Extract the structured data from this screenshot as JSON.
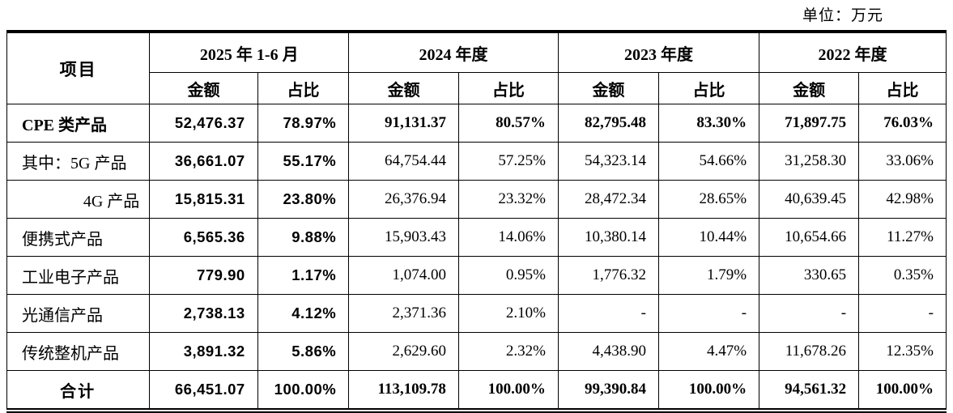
{
  "unit_label": "单位：万元",
  "table": {
    "item_header": "项目",
    "col_groups": [
      {
        "label": "2025 年 1-6 月",
        "sub": [
          "金额",
          "占比"
        ]
      },
      {
        "label": "2024 年度",
        "sub": [
          "金额",
          "占比"
        ]
      },
      {
        "label": "2023 年度",
        "sub": [
          "金额",
          "占比"
        ]
      },
      {
        "label": "2022 年度",
        "sub": [
          "金额",
          "占比"
        ]
      }
    ],
    "rows": [
      {
        "label": "CPE 类产品",
        "label_align": "left",
        "bold": true,
        "values": [
          "52,476.37",
          "78.97%",
          "91,131.37",
          "80.57%",
          "82,795.48",
          "83.30%",
          "71,897.75",
          "76.03%"
        ]
      },
      {
        "label": "其中：5G 产品",
        "label_align": "left",
        "bold": false,
        "values": [
          "36,661.07",
          "55.17%",
          "64,754.44",
          "57.25%",
          "54,323.14",
          "54.66%",
          "31,258.30",
          "33.06%"
        ]
      },
      {
        "label": "4G 产品",
        "label_align": "right",
        "bold": false,
        "values": [
          "15,815.31",
          "23.80%",
          "26,376.94",
          "23.32%",
          "28,472.34",
          "28.65%",
          "40,639.45",
          "42.98%"
        ]
      },
      {
        "label": "便携式产品",
        "label_align": "left",
        "bold": false,
        "values": [
          "6,565.36",
          "9.88%",
          "15,903.43",
          "14.06%",
          "10,380.14",
          "10.44%",
          "10,654.66",
          "11.27%"
        ]
      },
      {
        "label": "工业电子产品",
        "label_align": "left",
        "bold": false,
        "values": [
          "779.90",
          "1.17%",
          "1,074.00",
          "0.95%",
          "1,776.32",
          "1.79%",
          "330.65",
          "0.35%"
        ]
      },
      {
        "label": "光通信产品",
        "label_align": "left",
        "bold": false,
        "values": [
          "2,738.13",
          "4.12%",
          "2,371.36",
          "2.10%",
          "-",
          "-",
          "-",
          "-"
        ]
      },
      {
        "label": "传统整机产品",
        "label_align": "left",
        "bold": false,
        "values": [
          "3,891.32",
          "5.86%",
          "2,629.60",
          "2.32%",
          "4,438.90",
          "4.47%",
          "11,678.26",
          "12.35%"
        ]
      },
      {
        "label": "合计",
        "label_align": "center",
        "bold": true,
        "values": [
          "66,451.07",
          "100.00%",
          "113,109.78",
          "100.00%",
          "99,390.84",
          "100.00%",
          "94,561.32",
          "100.00%"
        ]
      }
    ]
  }
}
